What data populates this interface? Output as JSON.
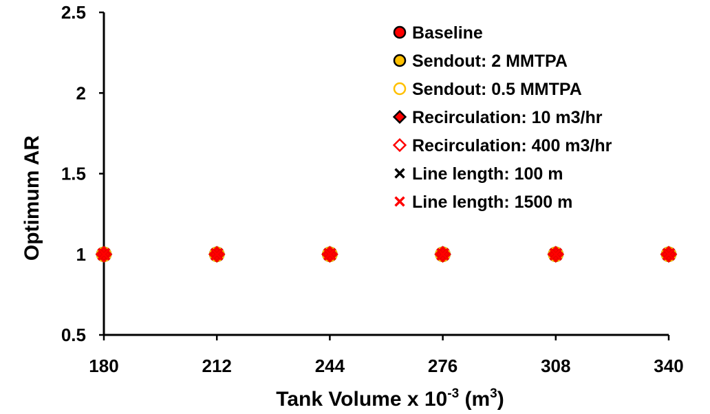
{
  "chart_data": {
    "type": "scatter",
    "title": "",
    "xlabel": {
      "prefix": "Tank Volume x 10",
      "prefix_superscript": "-3",
      "middle": " (m",
      "unit_superscript": "3",
      "suffix": ")"
    },
    "ylabel": "Optimum AR",
    "xlim": [
      180,
      340
    ],
    "ylim": [
      0.5,
      2.5
    ],
    "x_ticks": [
      "180",
      "212",
      "244",
      "276",
      "308",
      "340"
    ],
    "y_ticks": [
      "0.5",
      "1",
      "1.5",
      "2",
      "2.5"
    ],
    "grid": false,
    "legend_position": "top-right",
    "series": [
      {
        "name": "Baseline",
        "marker": "circle",
        "fill": "#ff0000",
        "stroke": "#000000",
        "x": [
          180,
          212,
          244,
          276,
          308,
          340
        ],
        "y": [
          1,
          1,
          1,
          1,
          1,
          1
        ]
      },
      {
        "name": "Sendout: 2 MMTPA",
        "marker": "circle",
        "fill": "#ffc000",
        "stroke": "#000000",
        "x": [
          180,
          212,
          244,
          276,
          308,
          340
        ],
        "y": [
          1,
          1,
          1,
          1,
          1,
          1
        ]
      },
      {
        "name": "Sendout: 0.5 MMTPA",
        "marker": "circle",
        "fill": "none",
        "stroke": "#ffc000",
        "x": [
          180,
          212,
          244,
          276,
          308,
          340
        ],
        "y": [
          1,
          1,
          1,
          1,
          1,
          1
        ]
      },
      {
        "name": "Recirculation: 10 m3/hr",
        "marker": "diamond",
        "fill": "#ff0000",
        "stroke": "#000000",
        "x": [
          180,
          212,
          244,
          276,
          308,
          340
        ],
        "y": [
          1,
          1,
          1,
          1,
          1,
          1
        ]
      },
      {
        "name": "Recirculation: 400 m3/hr",
        "marker": "diamond",
        "fill": "none",
        "stroke": "#ff0000",
        "x": [
          180,
          212,
          244,
          276,
          308,
          340
        ],
        "y": [
          1,
          1,
          1,
          1,
          1,
          1
        ]
      },
      {
        "name": "Line length: 100 m",
        "marker": "cross",
        "fill": "none",
        "stroke": "#000000",
        "x": [
          180,
          212,
          244,
          276,
          308,
          340
        ],
        "y": [
          1,
          1,
          1,
          1,
          1,
          1
        ]
      },
      {
        "name": "Line length: 1500 m",
        "marker": "cross",
        "fill": "none",
        "stroke": "#ff0000",
        "x": [
          180,
          212,
          244,
          276,
          308,
          340
        ],
        "y": [
          1,
          1,
          1,
          1,
          1,
          1
        ]
      }
    ]
  }
}
